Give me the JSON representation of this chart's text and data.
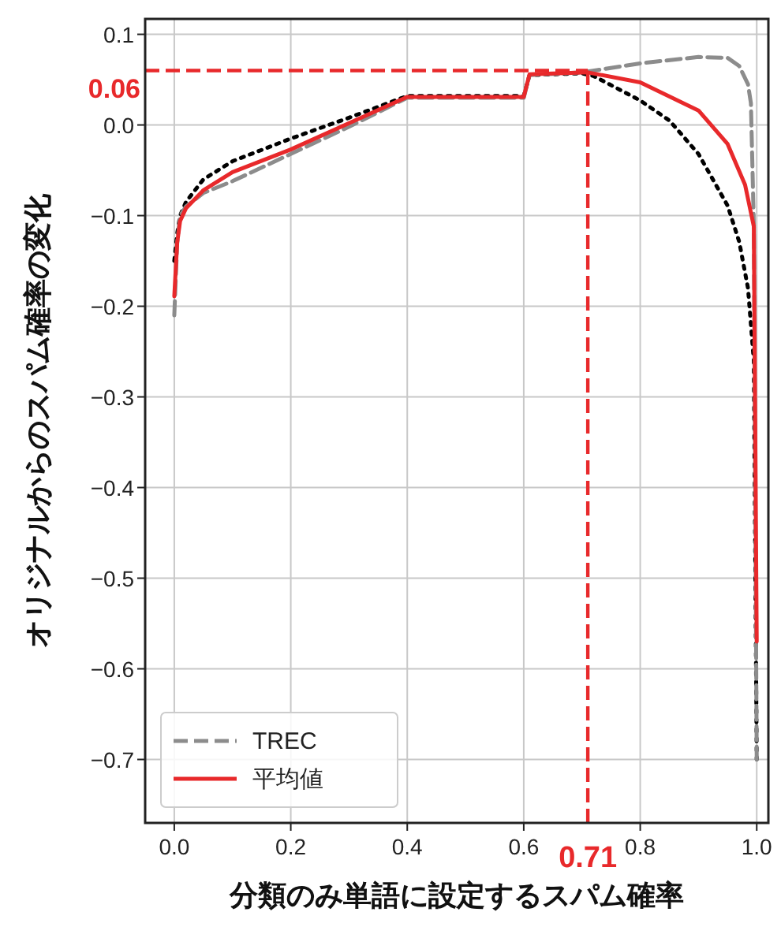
{
  "chart_data": {
    "type": "line",
    "xlabel": "分類のみ単語に設定するスパム確率",
    "ylabel": "オリジナルからのスパム確率の変化",
    "xlim": [
      -0.05,
      1.02
    ],
    "ylim": [
      -0.77,
      0.117
    ],
    "xticks": [
      {
        "value": 0,
        "label": "0.0"
      },
      {
        "value": 0.2,
        "label": "0.2"
      },
      {
        "value": 0.4,
        "label": "0.4"
      },
      {
        "value": 0.6,
        "label": "0.6"
      },
      {
        "value": 0.8,
        "label": "0.8"
      },
      {
        "value": 1,
        "label": "1.0"
      }
    ],
    "yticks": [
      {
        "value": -0.7,
        "label": "−0.7"
      },
      {
        "value": -0.6,
        "label": "−0.6"
      },
      {
        "value": -0.5,
        "label": "−0.5"
      },
      {
        "value": -0.4,
        "label": "−0.4"
      },
      {
        "value": -0.3,
        "label": "−0.3"
      },
      {
        "value": -0.2,
        "label": "−0.2"
      },
      {
        "value": -0.1,
        "label": "−0.1"
      },
      {
        "value": 0,
        "label": "0.0"
      },
      {
        "value": 0.1,
        "label": "0.1"
      }
    ],
    "grid": true,
    "legend": "bottom left",
    "series": [
      {
        "color": "#000000",
        "line_style": "dotted",
        "x": [
          0,
          0.005,
          0.01,
          0.02,
          0.05,
          0.1,
          0.2,
          0.3,
          0.4,
          0.6,
          0.61,
          0.7,
          0.72,
          0.8,
          0.85,
          0.9,
          0.95,
          0.97,
          0.985,
          0.995,
          1.0
        ],
        "values": [
          -0.15,
          -0.12,
          -0.1,
          -0.085,
          -0.06,
          -0.04,
          -0.015,
          0.008,
          0.032,
          0.032,
          0.055,
          0.057,
          0.054,
          0.027,
          0.005,
          -0.032,
          -0.089,
          -0.129,
          -0.18,
          -0.26,
          -0.7
        ]
      },
      {
        "name": "TREC",
        "color": "#8c8c8c",
        "line_style": "dashed",
        "x": [
          0,
          0.005,
          0.01,
          0.02,
          0.05,
          0.1,
          0.2,
          0.3,
          0.4,
          0.6,
          0.61,
          0.7,
          0.8,
          0.9,
          0.95,
          0.97,
          0.985,
          0.99,
          0.995,
          1.0
        ],
        "values": [
          -0.21,
          -0.13,
          -0.1,
          -0.09,
          -0.075,
          -0.062,
          -0.032,
          -0.002,
          0.03,
          0.03,
          0.055,
          0.058,
          0.068,
          0.075,
          0.074,
          0.065,
          0.045,
          0.024,
          -0.11,
          -0.7
        ]
      },
      {
        "name": "平均値",
        "color": "#e8292b",
        "line_style": "solid",
        "x": [
          0,
          0.005,
          0.01,
          0.02,
          0.05,
          0.1,
          0.2,
          0.3,
          0.4,
          0.6,
          0.61,
          0.71,
          0.8,
          0.9,
          0.95,
          0.98,
          0.995,
          1.0
        ],
        "values": [
          -0.189,
          -0.13,
          -0.106,
          -0.092,
          -0.072,
          -0.052,
          -0.027,
          0.002,
          0.031,
          0.031,
          0.056,
          0.058,
          0.047,
          0.016,
          -0.021,
          -0.066,
          -0.112,
          -0.57
        ]
      }
    ],
    "ref_lines": [
      {
        "axis": "y",
        "value": 0.06,
        "label": "0.06",
        "color": "#e8292b",
        "line_style": "dashed"
      },
      {
        "axis": "x",
        "value": 0.71,
        "label": "0.71",
        "color": "#e8292b",
        "line_style": "dashed"
      }
    ]
  }
}
